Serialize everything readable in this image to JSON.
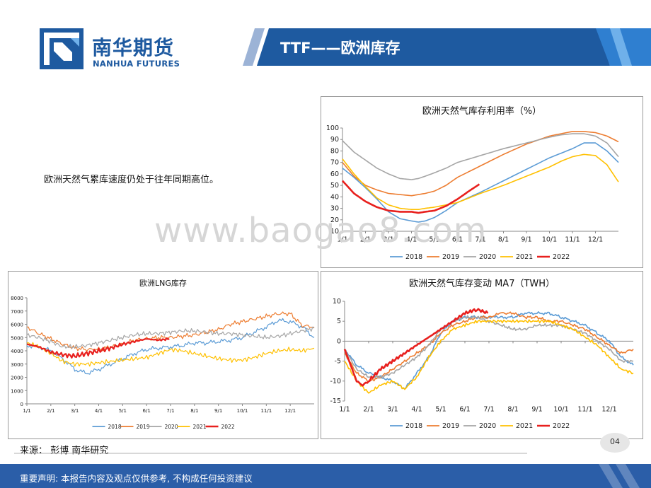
{
  "header": {
    "brand_cn": "南华期货",
    "brand_en": "NANHUA FUTURES",
    "title": "TTF——欧洲库存"
  },
  "body_text": "欧洲天然气累库速度仍处于往年同期高位。",
  "watermark": "www.baogao8.com",
  "source": "来源：  彭博  南华研究",
  "page_number": "04",
  "footer_text": "重要声明: 本报告内容及观点仅供参考, 不构成任何投资建议",
  "colors": {
    "brand_blue": "#1e5aa0",
    "footer_blue": "#2b5ea8",
    "s2018": "#5b9bd5",
    "s2019": "#ed7d31",
    "s2020": "#a5a5a5",
    "s2021": "#ffc000",
    "s2022": "#e8201e"
  },
  "chart_data": [
    {
      "id": "utilization",
      "type": "line",
      "title": "欧洲天然气库存利用率（%）",
      "xlabel": "",
      "ylabel": "",
      "categories": [
        "1/1",
        "2/1",
        "3/1",
        "4/1",
        "5/1",
        "6/1",
        "7/1",
        "8/1",
        "9/1",
        "10/1",
        "11/1",
        "12/1"
      ],
      "yticks": [
        "100",
        "90",
        "80",
        "70",
        "60",
        "50",
        "40",
        "30",
        "20",
        "10"
      ],
      "ylim": [
        10,
        100
      ],
      "legend": "bottom",
      "series": [
        {
          "name": "2018",
          "color_key": "s2018",
          "x": [
            0,
            0.5,
            1,
            1.5,
            2,
            2.5,
            3,
            3.3,
            3.6,
            4,
            4.5,
            5,
            6,
            7,
            8,
            9,
            9.5,
            10,
            10.5,
            11,
            11.5,
            12
          ],
          "values": [
            65,
            57,
            48,
            38,
            27,
            21,
            19,
            18,
            19,
            22,
            28,
            35,
            44,
            54,
            64,
            74,
            78,
            82,
            87,
            87,
            80,
            70
          ]
        },
        {
          "name": "2019",
          "color_key": "s2019",
          "x": [
            0,
            0.5,
            1,
            1.5,
            2,
            2.5,
            3,
            3.3,
            3.6,
            4,
            4.5,
            5,
            6,
            7,
            8,
            9,
            9.5,
            10,
            10.5,
            11,
            11.5,
            12
          ],
          "values": [
            70,
            58,
            50,
            46,
            43,
            42,
            41,
            42,
            43,
            45,
            50,
            57,
            67,
            77,
            86,
            93,
            95,
            97,
            97,
            96,
            93,
            88
          ]
        },
        {
          "name": "2020",
          "color_key": "s2020",
          "x": [
            0,
            0.5,
            1,
            1.5,
            2,
            2.5,
            3,
            3.3,
            3.6,
            4,
            4.5,
            5,
            6,
            7,
            8,
            9,
            9.5,
            10,
            10.5,
            11,
            11.5,
            12
          ],
          "values": [
            89,
            79,
            72,
            65,
            60,
            56,
            55,
            56,
            58,
            61,
            65,
            70,
            76,
            82,
            87,
            92,
            94,
            95,
            95,
            93,
            87,
            75
          ]
        },
        {
          "name": "2021",
          "color_key": "s2021",
          "x": [
            0,
            0.5,
            1,
            1.5,
            2,
            2.5,
            3,
            3.3,
            3.6,
            4,
            4.5,
            5,
            6,
            7,
            8,
            9,
            9.5,
            10,
            10.5,
            11,
            11.5,
            12
          ],
          "values": [
            73,
            60,
            49,
            39,
            33,
            30,
            29,
            29,
            30,
            31,
            33,
            35,
            43,
            50,
            58,
            66,
            71,
            75,
            77,
            76,
            68,
            53
          ]
        },
        {
          "name": "2022",
          "color_key": "s2022",
          "x": [
            0,
            0.5,
            1,
            1.5,
            2,
            2.5,
            3,
            3.3,
            3.6,
            4,
            4.5,
            5,
            5.5,
            5.95
          ],
          "values": [
            54,
            43,
            36,
            31,
            28,
            27,
            27,
            26,
            27,
            28,
            32,
            38,
            45,
            51
          ]
        }
      ]
    },
    {
      "id": "lng",
      "type": "line",
      "title": "欧洲LNG库存",
      "xlabel": "",
      "ylabel": "",
      "categories": [
        "1/1",
        "2/1",
        "3/1",
        "4/1",
        "5/1",
        "6/1",
        "7/1",
        "8/1",
        "9/1",
        "10/1",
        "11/1",
        "12/1"
      ],
      "yticks": [
        "8000",
        "7000",
        "6000",
        "5000",
        "4000",
        "3000",
        "2000",
        "1000",
        "0"
      ],
      "ylim": [
        0,
        8000
      ],
      "legend": "bottom",
      "series": [
        {
          "name": "2018",
          "color_key": "s2018",
          "x": [
            0,
            0.5,
            1,
            1.5,
            2,
            2.5,
            3,
            3.5,
            4,
            4.5,
            5,
            5.5,
            6,
            6.5,
            7,
            7.5,
            8,
            8.5,
            9,
            9.5,
            10,
            10.5,
            11,
            11.5,
            12
          ],
          "values": [
            4400,
            4300,
            4000,
            3400,
            2600,
            2300,
            2600,
            3000,
            3400,
            3800,
            4100,
            4200,
            4300,
            4400,
            4600,
            4600,
            4700,
            4800,
            5000,
            5400,
            5800,
            6300,
            6200,
            5800,
            5000
          ]
        },
        {
          "name": "2019",
          "color_key": "s2019",
          "x": [
            0,
            0.5,
            1,
            1.5,
            2,
            2.5,
            3,
            3.5,
            4,
            4.5,
            5,
            5.5,
            6,
            6.5,
            7,
            7.5,
            8,
            8.5,
            9,
            9.5,
            10,
            10.5,
            11,
            11.5,
            12
          ],
          "values": [
            5800,
            5300,
            4900,
            4500,
            4200,
            4100,
            4100,
            4300,
            4500,
            4800,
            4900,
            5000,
            5000,
            5100,
            5200,
            5400,
            5600,
            6000,
            6200,
            6400,
            6600,
            6800,
            6800,
            5900,
            5800
          ]
        },
        {
          "name": "2020",
          "color_key": "s2020",
          "x": [
            0,
            0.5,
            1,
            1.5,
            2,
            2.5,
            3,
            3.5,
            4,
            4.5,
            5,
            5.5,
            6,
            6.5,
            7,
            7.5,
            8,
            8.5,
            9,
            9.5,
            10,
            10.5,
            11,
            11.5,
            12
          ],
          "values": [
            5200,
            5000,
            4700,
            4300,
            4300,
            4400,
            4600,
            4800,
            5000,
            5200,
            5300,
            5300,
            5400,
            5500,
            5500,
            5400,
            5300,
            5300,
            5200,
            5100,
            5000,
            5100,
            5300,
            5500,
            5700
          ]
        },
        {
          "name": "2021",
          "color_key": "s2021",
          "x": [
            0,
            0.5,
            1,
            1.5,
            2,
            2.5,
            3,
            3.5,
            4,
            4.5,
            5,
            5.5,
            6,
            6.5,
            7,
            7.5,
            8,
            8.5,
            9,
            9.5,
            10,
            10.5,
            11,
            11.5,
            12
          ],
          "values": [
            4600,
            4300,
            3800,
            3200,
            3000,
            3000,
            3100,
            3200,
            3300,
            3400,
            3500,
            3800,
            4100,
            4000,
            3800,
            3600,
            3400,
            3300,
            3300,
            3500,
            3800,
            4000,
            4100,
            4000,
            4200
          ]
        },
        {
          "name": "2022",
          "color_key": "s2022",
          "x": [
            0,
            0.5,
            1,
            1.5,
            2,
            2.5,
            3,
            3.5,
            4,
            4.5,
            5,
            5.5,
            5.95
          ],
          "values": [
            4500,
            4300,
            3900,
            3700,
            3600,
            3800,
            4000,
            4200,
            4500,
            4700,
            4900,
            4800,
            4900
          ]
        }
      ]
    },
    {
      "id": "ma7",
      "type": "line",
      "title": "欧洲天然气库存变动 MA7（TWH）",
      "xlabel": "",
      "ylabel": "",
      "categories": [
        "1/1",
        "2/1",
        "3/1",
        "4/1",
        "5/1",
        "6/1",
        "7/1",
        "8/1",
        "9/1",
        "10/1",
        "11/1",
        "12/1"
      ],
      "yticks": [
        "10",
        "5",
        "0",
        "-5",
        "-10",
        "-15"
      ],
      "ylim": [
        -15,
        10
      ],
      "legend": "bottom",
      "series": [
        {
          "name": "2018",
          "color_key": "s2018",
          "x": [
            0,
            0.5,
            1,
            1.5,
            2,
            2.5,
            3,
            3.5,
            4,
            4.5,
            5,
            5.5,
            6,
            6.5,
            7,
            7.5,
            8,
            8.5,
            9,
            9.5,
            10,
            10.5,
            11,
            11.5,
            12
          ],
          "values": [
            -2,
            -6,
            -8,
            -9,
            -10,
            -12,
            -8,
            -4,
            2,
            5,
            6,
            6,
            6,
            6,
            6,
            7,
            7,
            7,
            6,
            5,
            4,
            2,
            0,
            -4,
            -6
          ]
        },
        {
          "name": "2019",
          "color_key": "s2019",
          "x": [
            0,
            0.5,
            1,
            1.5,
            2,
            2.5,
            3,
            3.5,
            4,
            4.5,
            5,
            5.5,
            6,
            6.5,
            7,
            7.5,
            8,
            8.5,
            9,
            9.5,
            10,
            10.5,
            11,
            11.5,
            12
          ],
          "values": [
            -3,
            -8,
            -10,
            -9,
            -7,
            -5,
            -3,
            -1,
            2,
            4,
            5,
            6,
            6,
            7,
            7,
            6,
            6,
            5,
            5,
            4,
            3,
            1,
            -1,
            -3,
            -2
          ]
        },
        {
          "name": "2020",
          "color_key": "s2020",
          "x": [
            0,
            0.5,
            1,
            1.5,
            2,
            2.5,
            3,
            3.5,
            4,
            4.5,
            5,
            5.5,
            6,
            6.5,
            7,
            7.5,
            8,
            8.5,
            9,
            9.5,
            10,
            10.5,
            11,
            11.5,
            12
          ],
          "values": [
            -2,
            -7,
            -9,
            -9,
            -8,
            -6,
            -4,
            -1,
            3,
            5,
            6,
            6,
            5,
            4,
            3,
            3,
            4,
            4,
            4,
            3,
            2,
            0,
            -2,
            -5,
            -5
          ]
        },
        {
          "name": "2021",
          "color_key": "s2021",
          "x": [
            0,
            0.5,
            1,
            1.5,
            2,
            2.5,
            3,
            3.5,
            4,
            4.5,
            5,
            5.5,
            6,
            6.5,
            7,
            7.5,
            8,
            8.5,
            9,
            9.5,
            10,
            10.5,
            11,
            11.5,
            12
          ],
          "values": [
            -5,
            -10,
            -13,
            -11,
            -10,
            -12,
            -9,
            -4,
            0,
            3,
            4,
            5,
            5,
            5,
            5,
            5,
            5,
            5,
            4,
            3,
            1,
            -1,
            -4,
            -7,
            -8
          ]
        },
        {
          "name": "2022",
          "color_key": "s2022",
          "x": [
            0,
            0.25,
            0.5,
            0.75,
            1,
            1.5,
            2,
            2.5,
            3,
            3.5,
            4,
            4.5,
            5,
            5.5,
            5.95
          ],
          "values": [
            -2,
            -6,
            -10,
            -11,
            -10,
            -7,
            -5,
            -3,
            -1,
            1,
            3,
            5,
            7,
            8,
            7
          ]
        }
      ]
    }
  ]
}
